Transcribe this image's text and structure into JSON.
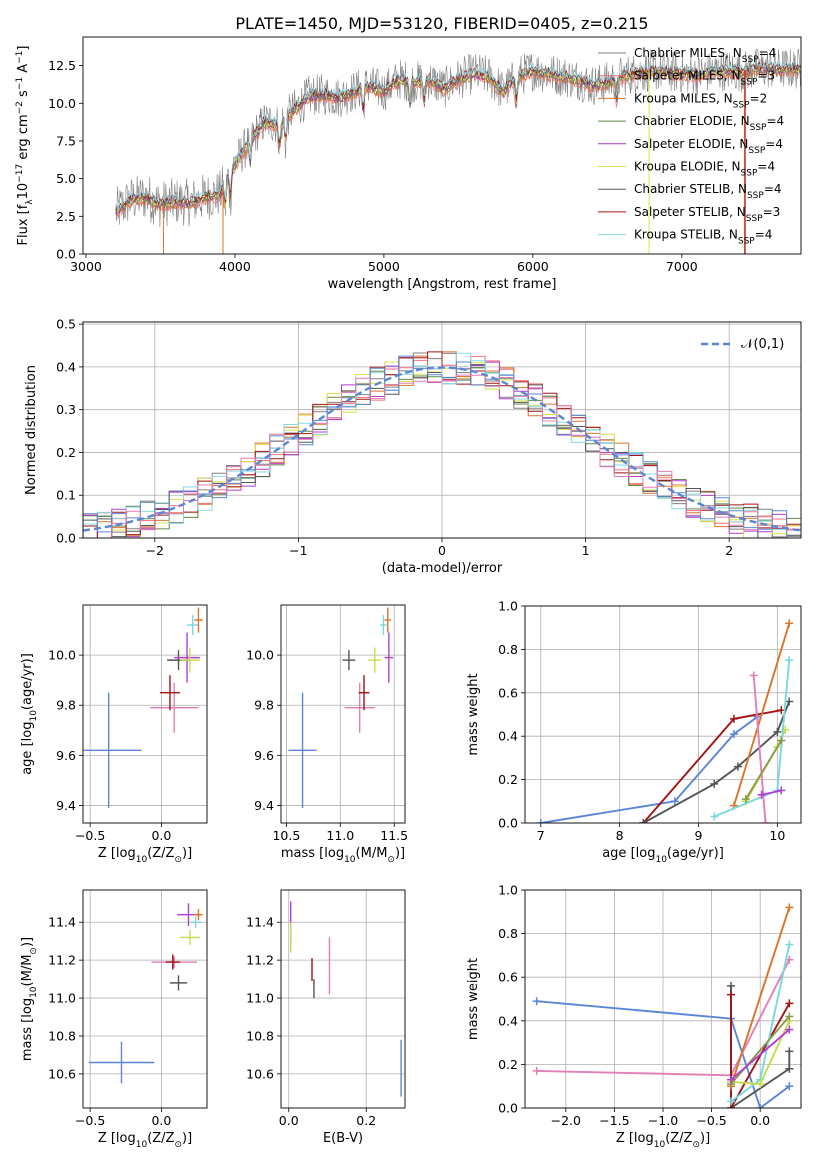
{
  "figure_title": "PLATE=1450, MJD=53120, FIBERID=0405, z=0.215",
  "colors": {
    "Chabrier MILES": "#808080",
    "Salpeter MILES": "#f4717c",
    "Kroupa MILES": "#d9742a",
    "Chabrier ELODIE": "#5e8a4a",
    "Salpeter ELODIE": "#9a3fb0",
    "Kroupa ELODIE": "#dce04a",
    "Chabrier STELIB": "#555555",
    "Salpeter STELIB": "#a01414",
    "Kroupa STELIB": "#86d9e3",
    "blue": "#5b86d6",
    "pink": "#e27fb7",
    "orange": "#d9742a",
    "grey": "#555555",
    "green": "#8a9a4a",
    "lime": "#c6dc4e",
    "red": "#a01414",
    "cyan": "#77d8e0",
    "purple": "#b03fd0",
    "olive": "#9a9a3a"
  },
  "chart_data": [
    {
      "id": "spectrum",
      "type": "line",
      "xlabel": "wavelength [Angstrom, rest frame]",
      "ylabel": "Flux [f$_\\lambda$10$^{-17}$ erg cm$^{-2}$ s$^{-1}$ A$^{-1}$]",
      "xlim": [
        2980,
        7800
      ],
      "ylim": [
        0,
        14.4
      ],
      "xticks": [
        3000,
        4000,
        5000,
        6000,
        7000
      ],
      "yticks": [
        0.0,
        2.5,
        5.0,
        7.5,
        10.0,
        12.5
      ],
      "legend_position": "top-right",
      "legend": [
        {
          "label": "Chabrier MILES, N$_{SSP}$=4",
          "color": "#808080"
        },
        {
          "label": "Salpeter MILES, N$_{SSP}$=3",
          "color": "#f4717c"
        },
        {
          "label": "Kroupa MILES, N$_{SSP}$=2",
          "color": "#d9742a"
        },
        {
          "label": "Chabrier ELODIE, N$_{SSP}$=4",
          "color": "#5e8a4a"
        },
        {
          "label": "Salpeter ELODIE, N$_{SSP}$=4",
          "color": "#9a3fb0"
        },
        {
          "label": "Kroupa ELODIE, N$_{SSP}$=4",
          "color": "#dce04a"
        },
        {
          "label": "Chabrier STELIB, N$_{SSP}$=4",
          "color": "#555555"
        },
        {
          "label": "Salpeter STELIB, N$_{SSP}$=3",
          "color": "#a01414"
        },
        {
          "label": "Kroupa STELIB, N$_{SSP}$=4",
          "color": "#86d9e3"
        }
      ],
      "continuum": {
        "x": [
          3200,
          3300,
          3400,
          3500,
          3600,
          3700,
          3800,
          3900,
          4000,
          4100,
          4200,
          4300,
          4400,
          4500,
          4600,
          4700,
          4800,
          4900,
          5000,
          5100,
          5200,
          5300,
          5400,
          5500,
          5600,
          5700,
          5800,
          5900,
          6000,
          6100,
          6200,
          6300,
          6400,
          6500,
          6600,
          6700,
          6800,
          6900,
          7000,
          7100,
          7200,
          7300,
          7400,
          7500
        ],
        "y": [
          2.8,
          3.6,
          3.8,
          3.3,
          3.5,
          3.4,
          3.8,
          4.0,
          6.0,
          7.5,
          8.8,
          8.6,
          9.6,
          10.5,
          10.6,
          10.4,
          10.8,
          11.2,
          10.8,
          11.6,
          11.4,
          11.6,
          11.0,
          11.6,
          12.0,
          11.8,
          10.8,
          11.8,
          12.2,
          12.0,
          11.8,
          11.6,
          11.2,
          11.4,
          11.8,
          12.0,
          12.2,
          12.1,
          12.0,
          11.9,
          12.1,
          12.2,
          12.1,
          12.3
        ]
      }
    },
    {
      "id": "residuals",
      "type": "line",
      "xlabel": "(data-model)/error",
      "ylabel": "Normed distribution",
      "xlim": [
        -2.5,
        2.5
      ],
      "ylim": [
        0,
        0.505
      ],
      "xticks": [
        -2,
        -1,
        0,
        1,
        2
      ],
      "yticks": [
        0.0,
        0.1,
        0.2,
        0.3,
        0.4,
        0.5
      ],
      "grid": true,
      "legend_position": "top-right",
      "legend": [
        {
          "label": "$\\mathcal{N}(0,1)$",
          "color": "#5b86d6",
          "dash": true
        }
      ],
      "bin_edges_start": -2.5,
      "bin_width": 0.1,
      "n_bins": 50
    },
    {
      "id": "age_vs_Z",
      "type": "scatter",
      "xlabel": "Z [log$_{10}$(Z/Z$_\\odot$)]",
      "ylabel": "age  [log$_{10}$(age/yr)]",
      "xlim": [
        -0.55,
        0.32
      ],
      "ylim": [
        9.33,
        10.2
      ],
      "xticks": [
        -0.5,
        0.0
      ],
      "yticks": [
        9.4,
        9.6,
        9.8,
        10.0
      ],
      "grid": true,
      "points": [
        {
          "x": -0.37,
          "y": 9.62,
          "xerr": 0.23,
          "yerr": 0.23,
          "color": "#5b86d6"
        },
        {
          "x": 0.09,
          "y": 9.79,
          "xerr": 0.17,
          "yerr": 0.1,
          "color": "#e27fb7"
        },
        {
          "x": 0.06,
          "y": 9.85,
          "xerr": 0.07,
          "yerr": 0.07,
          "color": "#a01414"
        },
        {
          "x": 0.12,
          "y": 9.98,
          "xerr": 0.08,
          "yerr": 0.04,
          "color": "#555555"
        },
        {
          "x": 0.18,
          "y": 9.99,
          "xerr": 0.09,
          "yerr": 0.1,
          "color": "#b03fd0"
        },
        {
          "x": 0.2,
          "y": 9.98,
          "xerr": 0.07,
          "yerr": 0.05,
          "color": "#c6dc4e"
        },
        {
          "x": 0.22,
          "y": 10.12,
          "xerr": 0.04,
          "yerr": 0.04,
          "color": "#77d8e0"
        },
        {
          "x": 0.26,
          "y": 10.14,
          "xerr": 0.03,
          "yerr": 0.05,
          "color": "#d9742a"
        }
      ]
    },
    {
      "id": "age_vs_mass",
      "type": "scatter",
      "xlabel": "mass [log$_{10}$(M/M$_\\odot$)]",
      "ylabel": "",
      "xlim": [
        10.45,
        11.6
      ],
      "ylim": [
        9.33,
        10.2
      ],
      "xticks": [
        10.5,
        11.0,
        11.5
      ],
      "yticks": [
        9.4,
        9.6,
        9.8,
        10.0
      ],
      "grid": true,
      "points": [
        {
          "x": 10.65,
          "y": 9.62,
          "xerr": 0.13,
          "yerr": 0.23,
          "color": "#5b86d6"
        },
        {
          "x": 11.18,
          "y": 9.79,
          "xerr": 0.14,
          "yerr": 0.1,
          "color": "#e27fb7"
        },
        {
          "x": 11.22,
          "y": 9.85,
          "xerr": 0.05,
          "yerr": 0.07,
          "color": "#a01414"
        },
        {
          "x": 11.08,
          "y": 9.98,
          "xerr": 0.06,
          "yerr": 0.04,
          "color": "#555555"
        },
        {
          "x": 11.45,
          "y": 9.99,
          "xerr": 0.04,
          "yerr": 0.1,
          "color": "#b03fd0"
        },
        {
          "x": 11.32,
          "y": 9.98,
          "xerr": 0.06,
          "yerr": 0.05,
          "color": "#c6dc4e"
        },
        {
          "x": 11.4,
          "y": 10.12,
          "xerr": 0.03,
          "yerr": 0.04,
          "color": "#77d8e0"
        },
        {
          "x": 11.44,
          "y": 10.14,
          "xerr": 0.03,
          "yerr": 0.05,
          "color": "#d9742a"
        }
      ]
    },
    {
      "id": "weight_vs_age",
      "type": "line",
      "xlabel": "age  [log$_{10}$(age/yr)]",
      "ylabel": "mass weight",
      "xlim": [
        6.8,
        10.3
      ],
      "ylim": [
        0,
        1.0
      ],
      "xticks": [
        7,
        8,
        9,
        10
      ],
      "yticks": [
        0.0,
        0.2,
        0.4,
        0.6,
        0.8,
        1.0
      ],
      "grid": true,
      "series": [
        {
          "color": "#5b86d6",
          "x": [
            7.0,
            8.7,
            9.45,
            9.75
          ],
          "y": [
            0.0,
            0.1,
            0.41,
            0.49
          ]
        },
        {
          "color": "#a01414",
          "x": [
            8.3,
            9.45,
            10.05
          ],
          "y": [
            0.0,
            0.48,
            0.52
          ]
        },
        {
          "color": "#555555",
          "x": [
            8.3,
            9.2,
            9.5,
            10.0,
            10.15
          ],
          "y": [
            0.0,
            0.18,
            0.26,
            0.42,
            0.56
          ]
        },
        {
          "color": "#d9742a",
          "x": [
            9.45,
            10.15
          ],
          "y": [
            0.08,
            0.92
          ]
        },
        {
          "color": "#c6dc4e",
          "x": [
            9.6,
            10.0,
            10.1
          ],
          "y": [
            0.1,
            0.35,
            0.43
          ]
        },
        {
          "color": "#77d8e0",
          "x": [
            9.2,
            10.0,
            10.15
          ],
          "y": [
            0.03,
            0.15,
            0.75
          ]
        },
        {
          "color": "#e27fb7",
          "x": [
            9.7,
            9.85
          ],
          "y": [
            0.68,
            0.0
          ]
        },
        {
          "color": "#b03fd0",
          "x": [
            9.8,
            10.05
          ],
          "y": [
            0.13,
            0.15
          ]
        },
        {
          "color": "#8a9a4a",
          "x": [
            9.6,
            10.05
          ],
          "y": [
            0.11,
            0.38
          ]
        }
      ]
    },
    {
      "id": "mass_vs_Z",
      "type": "scatter",
      "xlabel": "Z [log$_{10}$(Z/Z$_\\odot$)]",
      "ylabel": "mass [log$_{10}$(M/M$_\\odot$)]",
      "xlim": [
        -0.55,
        0.32
      ],
      "ylim": [
        10.42,
        11.57
      ],
      "xticks": [
        -0.5,
        0.0
      ],
      "yticks": [
        10.6,
        10.8,
        11.0,
        11.2,
        11.4
      ],
      "grid": true,
      "points": [
        {
          "x": -0.28,
          "y": 10.66,
          "xerr": 0.23,
          "yerr": 0.11,
          "color": "#5b86d6"
        },
        {
          "x": 0.09,
          "y": 11.19,
          "xerr": 0.16,
          "yerr": 0.03,
          "color": "#e27fb7"
        },
        {
          "x": 0.08,
          "y": 11.19,
          "xerr": 0.05,
          "yerr": 0.04,
          "color": "#a01414"
        },
        {
          "x": 0.12,
          "y": 11.08,
          "xerr": 0.06,
          "yerr": 0.04,
          "color": "#555555"
        },
        {
          "x": 0.19,
          "y": 11.44,
          "xerr": 0.08,
          "yerr": 0.06,
          "color": "#b03fd0"
        },
        {
          "x": 0.2,
          "y": 11.32,
          "xerr": 0.07,
          "yerr": 0.04,
          "color": "#c6dc4e"
        },
        {
          "x": 0.24,
          "y": 11.4,
          "xerr": 0.04,
          "yerr": 0.03,
          "color": "#77d8e0"
        },
        {
          "x": 0.26,
          "y": 11.44,
          "xerr": 0.03,
          "yerr": 0.03,
          "color": "#d9742a"
        }
      ]
    },
    {
      "id": "mass_vs_ebv",
      "type": "scatter",
      "xlabel": "E(B-V)",
      "ylabel": "",
      "xlim": [
        -0.02,
        0.3
      ],
      "ylim": [
        10.42,
        11.57
      ],
      "xticks": [
        0.0,
        0.2
      ],
      "yticks": [
        10.6,
        10.8,
        11.0,
        11.2,
        11.4
      ],
      "grid": true,
      "points": [
        {
          "x": 0.005,
          "y": 11.4,
          "xerr": 0.0,
          "yerr": 0.11,
          "color": "#b03fd0"
        },
        {
          "x": 0.005,
          "y": 11.32,
          "xerr": 0.0,
          "yerr": 0.08,
          "color": "#c6dc4e"
        },
        {
          "x": 0.06,
          "y": 11.15,
          "xerr": 0.0,
          "yerr": 0.06,
          "color": "#a01414"
        },
        {
          "x": 0.065,
          "y": 11.05,
          "xerr": 0.0,
          "yerr": 0.05,
          "color": "#555555"
        },
        {
          "x": 0.105,
          "y": 11.17,
          "xerr": 0.0,
          "yerr": 0.15,
          "color": "#e27fb7"
        },
        {
          "x": 0.29,
          "y": 10.63,
          "xerr": 0.0,
          "yerr": 0.15,
          "color": "#5b86d6"
        }
      ]
    },
    {
      "id": "weight_vs_Z",
      "type": "line",
      "xlabel": "Z [log$_{10}$(Z/Z$_\\odot$)]",
      "ylabel": "mass weight",
      "xlim": [
        -2.42,
        0.42
      ],
      "ylim": [
        0,
        1.0
      ],
      "xticks": [
        -2.0,
        -1.5,
        -1.0,
        -0.5,
        0.0
      ],
      "yticks": [
        0.0,
        0.2,
        0.4,
        0.6,
        0.8,
        1.0
      ],
      "grid": true,
      "series": [
        {
          "color": "#5b86d6",
          "x": [
            -2.3,
            -0.3,
            0.0,
            0.3
          ],
          "y": [
            0.49,
            0.41,
            0.0,
            0.1
          ]
        },
        {
          "color": "#e27fb7",
          "x": [
            -2.3,
            -0.3,
            0.3
          ],
          "y": [
            0.17,
            0.15,
            0.68
          ]
        },
        {
          "color": "#555555",
          "x": [
            -0.3,
            -0.3,
            0.3,
            0.3
          ],
          "y": [
            0.56,
            0.0,
            0.18,
            0.26
          ]
        },
        {
          "color": "#a01414",
          "x": [
            -0.3,
            -0.3,
            0.3
          ],
          "y": [
            0.52,
            0.0,
            0.48
          ]
        },
        {
          "color": "#d9742a",
          "x": [
            -0.3,
            0.3
          ],
          "y": [
            0.1,
            0.92
          ]
        },
        {
          "color": "#77d8e0",
          "x": [
            -0.3,
            0.0,
            0.3
          ],
          "y": [
            0.03,
            0.13,
            0.75
          ]
        },
        {
          "color": "#c6dc4e",
          "x": [
            -0.3,
            0.0,
            0.3
          ],
          "y": [
            0.12,
            0.11,
            0.4
          ]
        },
        {
          "color": "#8a9a4a",
          "x": [
            -0.3,
            0.3
          ],
          "y": [
            0.11,
            0.42
          ]
        },
        {
          "color": "#b03fd0",
          "x": [
            -0.3,
            0.3
          ],
          "y": [
            0.13,
            0.36
          ]
        }
      ]
    }
  ]
}
